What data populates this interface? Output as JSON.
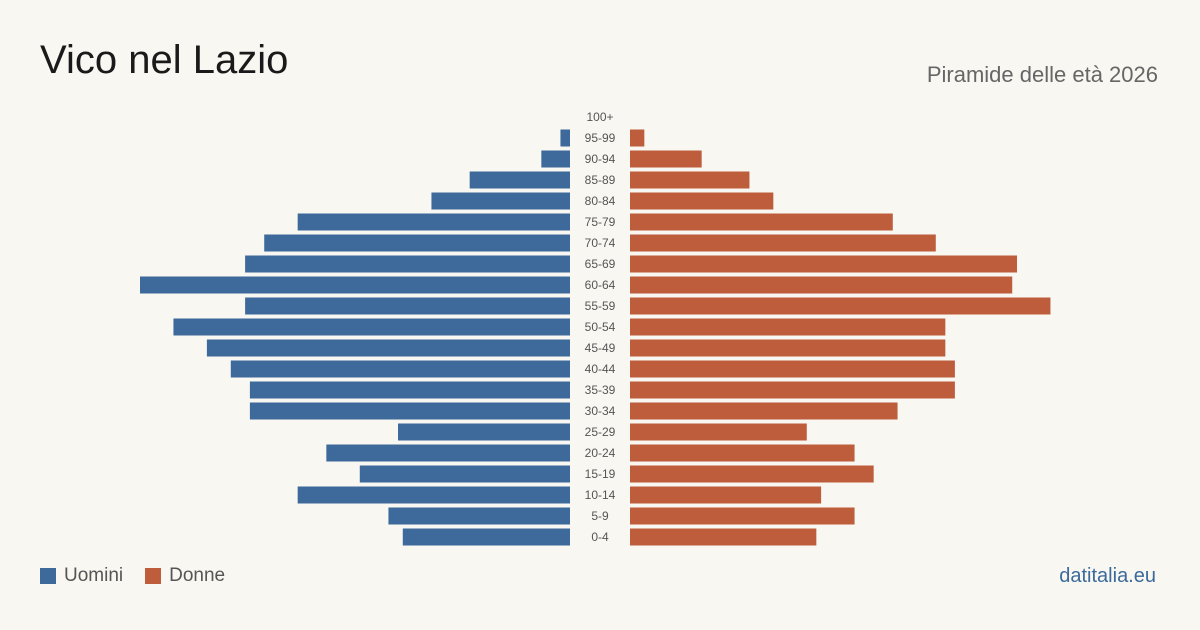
{
  "title": "Vico nel Lazio",
  "subtitle": "Piramide delle età 2026",
  "brand": "datitalia.eu",
  "colors": {
    "male": "#3d6a9a",
    "female": "#bd5d3b",
    "background": "#f9f7f2"
  },
  "legend": {
    "male": "Uomini",
    "female": "Donne"
  },
  "chart_data": {
    "type": "bar",
    "orientation": "horizontal-pyramid",
    "categories": [
      "100+",
      "95-99",
      "90-94",
      "85-89",
      "80-84",
      "75-79",
      "70-74",
      "65-69",
      "60-64",
      "55-59",
      "50-54",
      "45-49",
      "40-44",
      "35-39",
      "30-34",
      "25-29",
      "20-24",
      "15-19",
      "10-14",
      "5-9",
      "0-4"
    ],
    "series": [
      {
        "name": "Uomini",
        "values": [
          0,
          2,
          6,
          21,
          29,
          57,
          64,
          68,
          90,
          68,
          83,
          76,
          71,
          67,
          67,
          36,
          51,
          44,
          57,
          38,
          35
        ]
      },
      {
        "name": "Donne",
        "values": [
          0,
          3,
          15,
          25,
          30,
          55,
          64,
          81,
          80,
          88,
          66,
          66,
          68,
          68,
          56,
          37,
          47,
          51,
          40,
          47,
          39
        ]
      }
    ],
    "xlabel": "",
    "ylabel": "",
    "xlim": [
      0,
      90
    ],
    "grid": false,
    "legend_position": "bottom-left"
  }
}
